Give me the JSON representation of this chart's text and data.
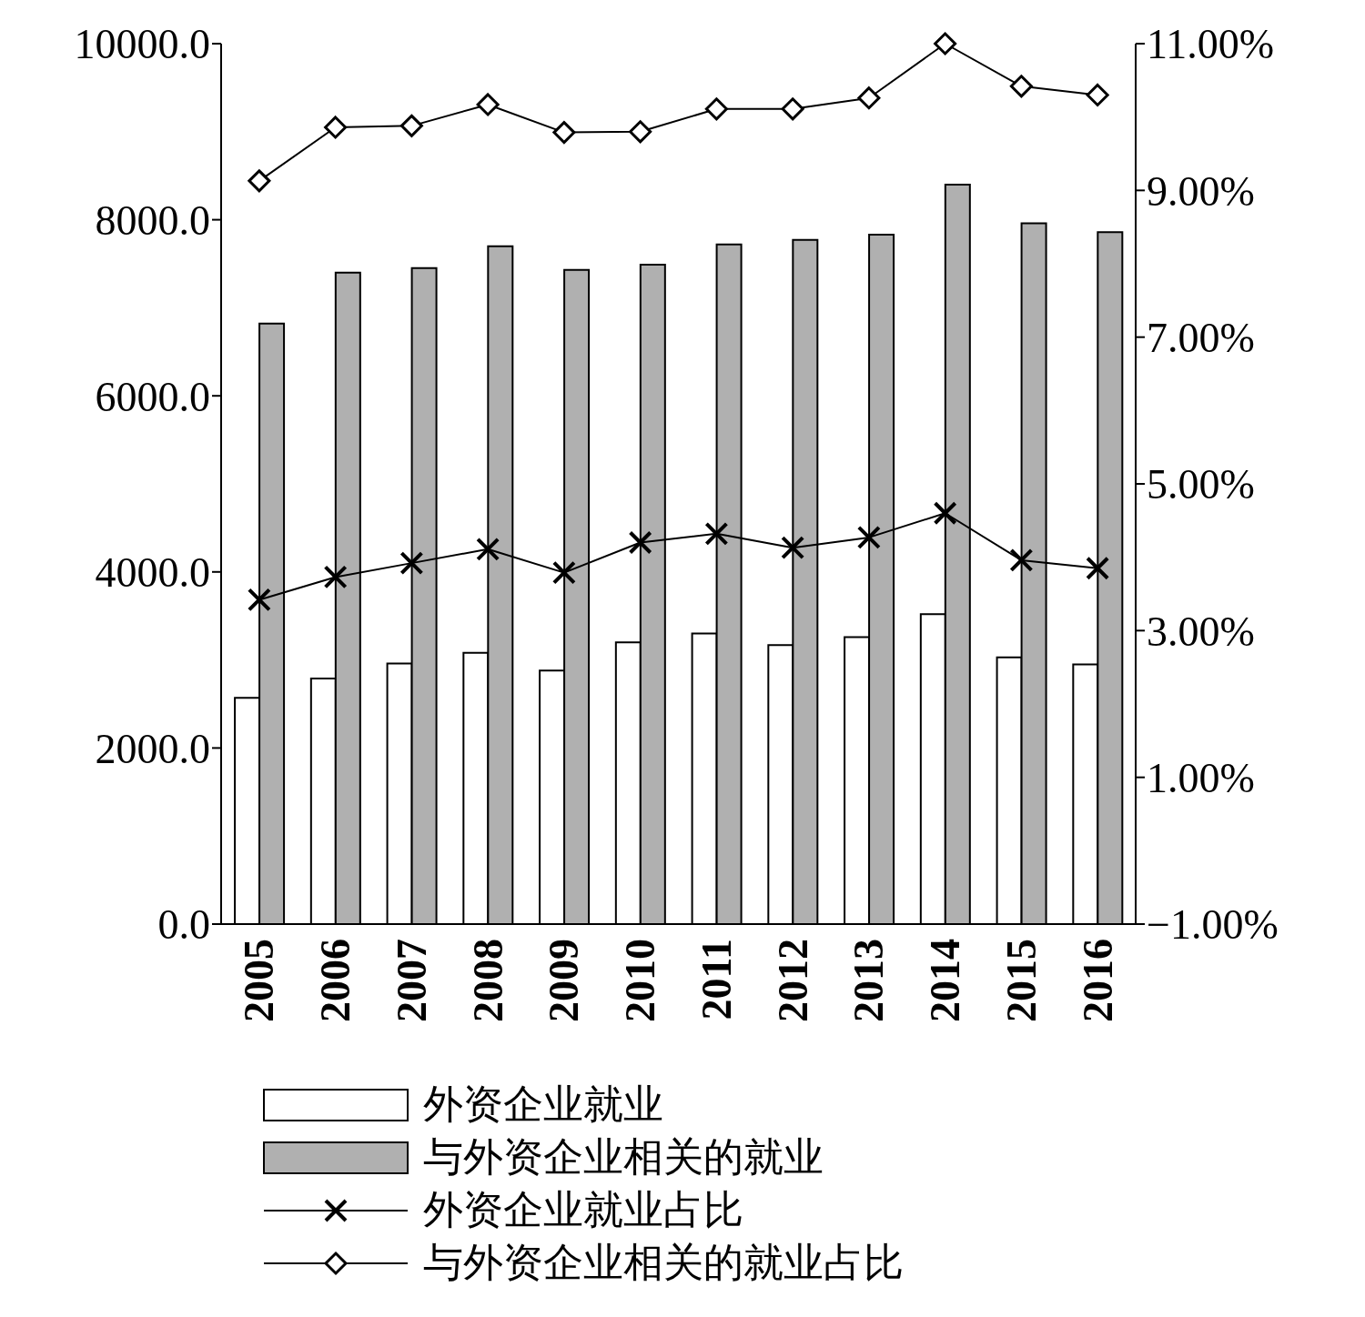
{
  "chart_data": {
    "type": "bar",
    "categories": [
      "2005",
      "2006",
      "2007",
      "2008",
      "2009",
      "2010",
      "2011",
      "2012",
      "2013",
      "2014",
      "2015",
      "2016"
    ],
    "series": [
      {
        "name": "外资企业就业",
        "color": "#ffffff",
        "values": [
          2570,
          2790,
          2960,
          3080,
          2880,
          3200,
          3300,
          3170,
          3260,
          3520,
          3030,
          2950
        ]
      },
      {
        "name": "与外资企业相关的就业",
        "color": "#b0b0b0",
        "values": [
          6820,
          7400,
          7450,
          7700,
          7430,
          7490,
          7720,
          7770,
          7830,
          8400,
          7960,
          7860
        ]
      },
      {
        "name": "外资企业就业占比",
        "type": "line",
        "axis": "y2",
        "color": "#000000",
        "marker": "cross",
        "values": [
          3.42,
          3.73,
          3.92,
          4.11,
          3.79,
          4.2,
          4.32,
          4.13,
          4.27,
          4.6,
          3.96,
          3.85
        ]
      },
      {
        "name": "与外资企业相关的就业占比",
        "type": "line",
        "axis": "y2",
        "color": "#000000",
        "marker": "diamond",
        "values": [
          9.13,
          9.86,
          9.88,
          10.17,
          9.79,
          9.8,
          10.11,
          10.11,
          10.26,
          11.0,
          10.42,
          10.3
        ]
      }
    ],
    "ylim": [
      0,
      10000
    ],
    "yticks": [
      {
        "value": 0,
        "label": "0.0"
      },
      {
        "value": 2000,
        "label": "2000.0"
      },
      {
        "value": 4000,
        "label": "4000.0"
      },
      {
        "value": 6000,
        "label": "6000.0"
      },
      {
        "value": 8000,
        "label": "8000.0"
      },
      {
        "value": 10000,
        "label": "10000.0"
      }
    ],
    "y2lim": [
      -1,
      11
    ],
    "y2ticks": [
      {
        "value": -1,
        "label": "−1.00%"
      },
      {
        "value": 1,
        "label": "1.00%"
      },
      {
        "value": 3,
        "label": "3.00%"
      },
      {
        "value": 5,
        "label": "5.00%"
      },
      {
        "value": 7,
        "label": "7.00%"
      },
      {
        "value": 9,
        "label": "9.00%"
      },
      {
        "value": 11,
        "label": "11.00%"
      }
    ],
    "grid": false,
    "legend": "bottom"
  }
}
